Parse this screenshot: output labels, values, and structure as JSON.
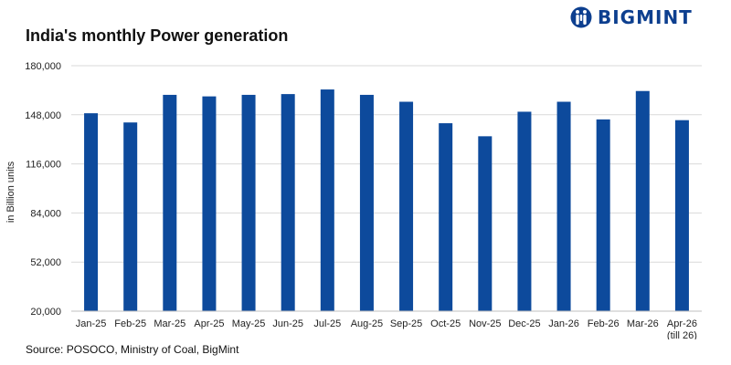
{
  "title": "India's monthly Power generation",
  "logo_text": "BIGMINT",
  "source": "Source: POSOCO, Ministry of Coal, BigMint",
  "colors": {
    "bar": "#0d4a9c",
    "grid": "#d9d9d9",
    "logo": "#0d3f8f"
  },
  "chart_data": {
    "type": "bar",
    "ylabel": "in Billion units",
    "ylim": [
      20000,
      180000
    ],
    "yticks": [
      "20,000",
      "52,000",
      "84,000",
      "116,000",
      "148,000",
      "180,000"
    ],
    "ytick_values": [
      20000,
      52000,
      84000,
      116000,
      148000,
      180000
    ],
    "grid": true,
    "categories": [
      "Jan-25",
      "Feb-25",
      "Mar-25",
      "Apr-25",
      "May-25",
      "Jun-25",
      "Jul-25",
      "Aug-25",
      "Sep-25",
      "Oct-25",
      "Nov-25",
      "Dec-25",
      "Jan-26",
      "Feb-26",
      "Mar-26",
      "Apr-26"
    ],
    "category_sublabels": [
      "",
      "",
      "",
      "",
      "",
      "",
      "",
      "",
      "",
      "",
      "",
      "",
      "",
      "",
      "",
      "(till 26)"
    ],
    "values": [
      149000,
      143000,
      161000,
      160000,
      161000,
      161500,
      164500,
      161000,
      156500,
      142500,
      134000,
      150000,
      156500,
      145000,
      163500,
      144500
    ]
  }
}
